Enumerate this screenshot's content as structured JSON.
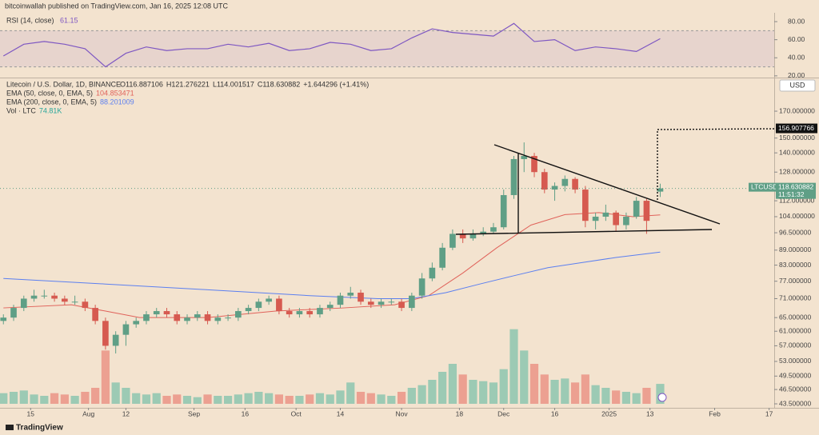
{
  "header": {
    "publisher": "bitcoinwallah published on TradingView.com, Jan 16, 2025 12:08 UTC",
    "brand": "TradingView"
  },
  "chart_data": {
    "type": "candlestick",
    "symbol": "Litecoin / U.S. Dollar, 1D, BINANCE",
    "ohlc_labels": [
      "O116.887106",
      "H121.276221",
      "L114.001517",
      "C118.630882",
      "+1.644296 (+1.41%)"
    ],
    "log_scale": true,
    "ylim": [
      42.7,
      196.6
    ],
    "xlim": [
      -1,
      226.5
    ],
    "up_color": "#5f9f86",
    "down_color": "#d65a50",
    "yticks": [
      {
        "value": 170,
        "label": "170.000000"
      },
      {
        "value": 150,
        "label": "150.000000"
      },
      {
        "value": 140,
        "label": "140.000000"
      },
      {
        "value": 128,
        "label": "128.000000"
      },
      {
        "value": 112,
        "label": "112.000000"
      },
      {
        "value": 104,
        "label": "104.000000"
      },
      {
        "value": 96.5,
        "label": "96.500000"
      },
      {
        "value": 89,
        "label": "89.000000"
      },
      {
        "value": 83,
        "label": "83.000000"
      },
      {
        "value": 77,
        "label": "77.000000"
      },
      {
        "value": 71,
        "label": "71.000000"
      },
      {
        "value": 65,
        "label": "65.000000"
      },
      {
        "value": 61,
        "label": "61.000000"
      },
      {
        "value": 57,
        "label": "57.000000"
      },
      {
        "value": 53,
        "label": "53.000000"
      },
      {
        "value": 49.5,
        "label": "49.500000"
      },
      {
        "value": 46.5,
        "label": "46.500000"
      },
      {
        "value": 43.5,
        "label": "43.500000"
      }
    ],
    "xticks": [
      {
        "value": 8,
        "label": "15"
      },
      {
        "value": 25,
        "label": "Aug"
      },
      {
        "value": 36,
        "label": "12"
      },
      {
        "value": 56,
        "label": "Sep"
      },
      {
        "value": 71,
        "label": "16"
      },
      {
        "value": 86,
        "label": "Oct"
      },
      {
        "value": 99,
        "label": "14"
      },
      {
        "value": 117,
        "label": "Nov"
      },
      {
        "value": 134,
        "label": "18"
      },
      {
        "value": 147,
        "label": "Dec"
      },
      {
        "value": 162,
        "label": "16"
      },
      {
        "value": 178,
        "label": "2025"
      },
      {
        "value": 190,
        "label": "13"
      },
      {
        "value": 209,
        "label": "Feb"
      },
      {
        "value": 225,
        "label": "17"
      }
    ],
    "currency": "USD",
    "target_label": {
      "value": 156.907766,
      "label": "156.907766"
    },
    "price_tag": {
      "name": "LTCUSD",
      "countdown": "11:51:32"
    },
    "candles": {
      "x": [
        0,
        3,
        6,
        9,
        12,
        15,
        18,
        21,
        24,
        27,
        30,
        33,
        36,
        39,
        42,
        45,
        48,
        51,
        54,
        57,
        60,
        63,
        66,
        69,
        72,
        75,
        78,
        81,
        84,
        87,
        90,
        93,
        96,
        99,
        102,
        105,
        108,
        111,
        114,
        117,
        120,
        123,
        126,
        129,
        132,
        135,
        138,
        141,
        144,
        147,
        150,
        153,
        156,
        159,
        162,
        165,
        168,
        171,
        174,
        177,
        180,
        183,
        186,
        189,
        193
      ],
      "open": [
        64,
        65,
        68,
        71,
        72,
        72,
        71,
        70,
        70,
        68,
        64,
        57,
        60,
        63,
        64,
        66,
        67,
        66,
        64,
        65,
        66,
        64,
        65,
        65,
        67,
        68,
        70,
        71,
        67,
        66,
        67,
        66,
        68,
        69,
        72,
        73,
        70,
        69,
        70,
        70,
        68,
        72,
        78,
        82,
        90,
        96,
        94,
        96,
        97,
        99,
        115,
        136,
        138,
        128,
        118,
        120,
        124,
        118,
        102,
        104,
        106,
        100,
        104,
        112,
        116.887106
      ],
      "high": [
        66,
        69,
        72,
        74,
        74,
        73,
        72,
        72,
        71,
        69,
        65,
        61,
        64,
        65,
        67,
        68,
        68,
        67,
        66,
        67,
        67,
        66,
        66,
        68,
        69,
        71,
        72,
        72,
        68,
        68,
        68,
        69,
        70,
        73,
        75,
        74,
        71,
        71,
        71,
        71,
        73,
        80,
        84,
        92,
        98,
        98,
        98,
        99,
        101,
        118,
        138,
        147,
        140,
        130,
        122,
        126,
        125,
        120,
        106,
        110,
        107,
        106,
        114,
        113,
        121.276221
      ],
      "low": [
        63,
        64,
        67,
        70,
        71,
        70,
        69,
        69,
        67,
        63,
        56,
        55,
        57,
        62,
        63,
        65,
        65,
        63,
        63,
        64,
        63,
        63,
        64,
        64,
        66,
        67,
        69,
        66,
        65,
        65,
        65,
        65,
        67,
        68,
        71,
        69,
        68,
        68,
        69,
        67,
        67,
        71,
        77,
        81,
        89,
        92,
        93,
        95,
        96,
        98,
        113,
        128,
        125,
        116,
        112,
        117,
        116,
        99,
        98,
        102,
        97,
        98,
        103,
        96,
        114.001517
      ],
      "close": [
        65,
        68,
        71,
        72,
        72,
        71,
        70,
        70,
        68,
        64,
        57,
        60,
        63,
        64,
        66,
        67,
        66,
        64,
        65,
        66,
        64,
        65,
        65,
        67,
        68,
        70,
        71,
        67,
        66,
        67,
        66,
        68,
        69,
        72,
        73,
        70,
        69,
        70,
        70,
        68,
        72,
        78,
        82,
        90,
        96,
        94,
        96,
        97,
        99,
        115,
        136,
        138,
        128,
        118,
        120,
        124,
        118,
        102,
        104,
        106,
        100,
        104,
        112,
        102,
        118.630882
      ]
    },
    "series": [
      {
        "name": "EMA (50, close, 0, EMA, 5)",
        "color": "#e0625a",
        "last_label": "104.853471",
        "x": [
          0,
          20,
          30,
          40,
          60,
          80,
          100,
          115,
          125,
          135,
          145,
          155,
          165,
          175,
          185,
          193
        ],
        "values": [
          68,
          69,
          67,
          65,
          65,
          67,
          68,
          69,
          72,
          80,
          90,
          100,
          105,
          106,
          104,
          104.853471
        ]
      },
      {
        "name": "EMA (200, close, 0, EMA, 5)",
        "color": "#5b7ff0",
        "last_label": "88.201009",
        "x": [
          0,
          30,
          60,
          90,
          110,
          120,
          130,
          140,
          150,
          160,
          170,
          180,
          193
        ],
        "values": [
          78,
          76,
          74,
          72,
          71,
          71,
          73,
          76,
          79,
          82,
          84,
          86,
          88.201009
        ]
      }
    ],
    "volume": {
      "name": "Vol · LTC",
      "last_label": "74.81K",
      "ylim": [
        0,
        300
      ],
      "values": [
        40,
        45,
        50,
        35,
        30,
        40,
        35,
        30,
        45,
        60,
        200,
        80,
        60,
        40,
        35,
        40,
        30,
        35,
        30,
        25,
        35,
        30,
        30,
        35,
        40,
        45,
        40,
        35,
        30,
        30,
        35,
        40,
        35,
        50,
        80,
        45,
        40,
        35,
        30,
        45,
        60,
        70,
        90,
        120,
        150,
        110,
        90,
        85,
        80,
        130,
        280,
        200,
        150,
        110,
        90,
        95,
        80,
        110,
        70,
        60,
        50,
        45,
        40,
        60,
        74.81
      ]
    },
    "rsi": {
      "name": "RSI (14, close)",
      "color": "#7e57c2",
      "ylim": [
        19,
        88
      ],
      "band": [
        30,
        70
      ],
      "yticks": [
        {
          "value": 80,
          "label": "80.00"
        },
        {
          "value": 60,
          "label": "60.00"
        },
        {
          "value": 40,
          "label": "40.00"
        },
        {
          "value": 20,
          "label": "20.00"
        }
      ],
      "x": [
        0,
        6,
        12,
        18,
        24,
        30,
        36,
        42,
        48,
        54,
        60,
        66,
        72,
        78,
        84,
        90,
        96,
        102,
        108,
        114,
        120,
        126,
        132,
        138,
        144,
        150,
        156,
        162,
        168,
        174,
        180,
        186,
        193
      ],
      "values": [
        42,
        55,
        58,
        55,
        50,
        30,
        45,
        52,
        48,
        50,
        50,
        55,
        52,
        56,
        48,
        50,
        57,
        55,
        48,
        50,
        62,
        72,
        68,
        66,
        64,
        78,
        58,
        60,
        48,
        52,
        50,
        47,
        61.15
      ]
    }
  }
}
